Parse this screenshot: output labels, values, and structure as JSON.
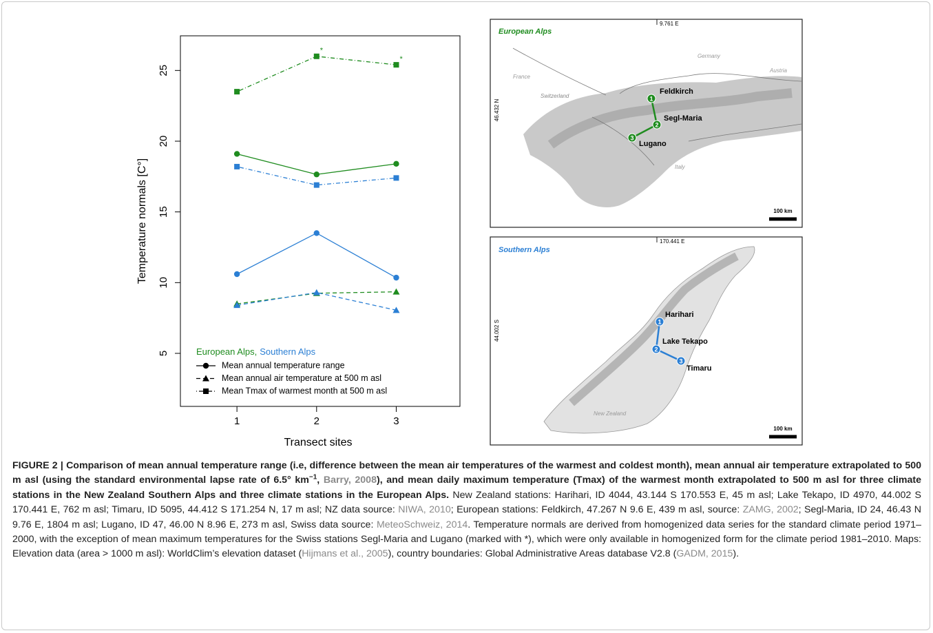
{
  "chart_data": {
    "type": "line",
    "ylabel": "Temperature normals [C°]",
    "xlabel": "Transect sites",
    "x": [
      1,
      2,
      3
    ],
    "xlim": [
      0.29,
      3.8
    ],
    "xticks": [
      1,
      2,
      3
    ],
    "ylim": [
      1.25,
      27.45
    ],
    "yticks": [
      5,
      10,
      15,
      20,
      25
    ],
    "series": [
      {
        "color": "#1f8c1f",
        "marker": "square",
        "dash": "dotdash",
        "values": [
          23.5,
          26.0,
          25.4
        ]
      },
      {
        "color": "#1f8c1f",
        "marker": "circle",
        "dash": "solid",
        "values": [
          19.1,
          17.65,
          18.4
        ]
      },
      {
        "color": "#2b7fd4",
        "marker": "square",
        "dash": "dotdash",
        "values": [
          18.2,
          16.9,
          17.4
        ]
      },
      {
        "color": "#2b7fd4",
        "marker": "circle",
        "dash": "solid",
        "values": [
          10.6,
          13.5,
          10.35
        ]
      },
      {
        "color": "#1f8c1f",
        "marker": "triangle",
        "dash": "dashed",
        "values": [
          8.5,
          9.25,
          9.35
        ]
      },
      {
        "color": "#2b7fd4",
        "marker": "triangle",
        "dash": "dashed",
        "values": [
          8.4,
          9.3,
          8.05
        ]
      }
    ],
    "annotations": [
      {
        "text": "*",
        "series": 0,
        "index": 1
      },
      {
        "text": "*",
        "series": 0,
        "index": 2
      }
    ],
    "legend": {
      "groups": [
        {
          "text": "European Alps,",
          "color": "#1f8c1f"
        },
        {
          "text": "Southern Alps",
          "color": "#2b7fd4"
        }
      ],
      "entries": [
        {
          "label": "Mean annual temperature range",
          "marker": "circle",
          "dash": "solid"
        },
        {
          "label": "Mean annual  air temperature at 500 m asl",
          "marker": "triangle",
          "dash": "dashed"
        },
        {
          "label": "Mean Tmax of warmest month at 500 m asl",
          "marker": "square",
          "dash": "dotdash"
        }
      ]
    }
  },
  "maps": [
    {
      "title": "European Alps",
      "lon_label": "9.761 E",
      "lat_label": "46.432 N",
      "countries": [
        "France",
        "Germany",
        "Austria",
        "Switzerland",
        "Italy"
      ],
      "stations": [
        {
          "number": "1",
          "name": "Feldkirch"
        },
        {
          "number": "2",
          "name": "Segl-Maria"
        },
        {
          "number": "3",
          "name": "Lugano"
        }
      ],
      "scale": "100 km"
    },
    {
      "title": "Southern Alps",
      "lon_label": "170.441 E",
      "lat_label": "44.002 S",
      "countries": [
        "New Zealand"
      ],
      "stations": [
        {
          "number": "1",
          "name": "Harihari"
        },
        {
          "number": "2",
          "name": "Lake Tekapo"
        },
        {
          "number": "3",
          "name": "Timaru"
        }
      ],
      "scale": "100 km"
    }
  ],
  "caption": {
    "title": [
      "FIGURE 2 | Comparison of mean annual temperature range (i.e, difference between the mean air temperatures of the warmest and coldest month), mean annual air temperature extrapolated to 500 m asl (using the standard environmental lapse rate of 6.5° km",
      "−1",
      ", ",
      "Barry, 2008",
      "), and mean daily maximum temperature (Tmax) of the warmest month extrapolated to 500 m asl for three climate stations in the New Zealand Southern Alps and three climate stations in the European Alps."
    ],
    "body": [
      " New Zealand stations: Harihari, ID 4044, 43.144 S 170.553 E, 45 m asl; Lake Tekapo, ID 4970, 44.002 S 170.441 E, 762 m asl; Timaru, ID 5095, 44.412 S 171.254 N, 17 m asl; NZ data source: ",
      "NIWA, 2010",
      "; European stations: Feldkirch, 47.267 N 9.6 E, 439 m asl, source: ",
      "ZAMG, 2002",
      "; Segl-Maria, ID 24, 46.43 N 9.76 E, 1804 m asl; Lugano, ID 47, 46.00 N 8.96 E, 273 m asl, Swiss data source: ",
      "MeteoSchweiz, 2014",
      ". Temperature normals are derived from homogenized data series for the standard climate period 1971–2000, with the exception of mean maximum temperatures for the Swiss stations Segl-Maria and Lugano (marked with *), which were only available in homogenized form for the climate period 1981–2010. Maps: Elevation data (area > 1000 m asl): WorldClim’s elevation dataset (",
      "Hijmans et al., 2005",
      "), country boundaries: Global Administrative Areas database V2.8 (",
      "GADM, 2015",
      ")."
    ]
  }
}
